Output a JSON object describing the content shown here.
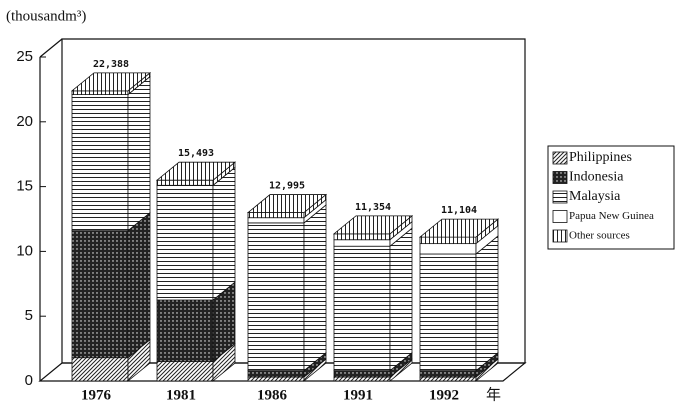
{
  "chart_data": {
    "type": "stacked-bar-3d",
    "y_label": "(thousandm³)",
    "x_unit": "年",
    "categories": [
      "1976",
      "1981",
      "1986",
      "1991",
      "1992"
    ],
    "series": [
      {
        "name": "Philippines",
        "color": "#222",
        "pattern": "diagonal",
        "values": [
          1.8,
          1.5,
          0.3,
          0.3,
          0.3
        ]
      },
      {
        "name": "Indonesia",
        "color": "#222",
        "pattern": "crosshatch",
        "values": [
          9.8,
          4.75,
          0.5,
          0.5,
          0.5
        ]
      },
      {
        "name": "Malaysia",
        "color": "#222",
        "pattern": "horizontal",
        "values": [
          10.5,
          8.85,
          11.4,
          9.6,
          9.0
        ]
      },
      {
        "name": "Papua New Guinea",
        "color": "#222",
        "pattern": "none",
        "values": [
          0,
          0,
          0.4,
          0.5,
          0.8
        ]
      },
      {
        "name": "Other sources",
        "color": "#222",
        "pattern": "vertical",
        "values": [
          0.288,
          0.393,
          0.395,
          0.454,
          0.504
        ]
      }
    ],
    "totals": {
      "values": [
        22.388,
        15.493,
        12.995,
        11.354,
        11.104
      ],
      "value_labels": [
        "22,388",
        "15,493",
        "12,995",
        "11,354",
        "11,104"
      ]
    },
    "ylim": [
      0,
      25
    ],
    "yticks": [
      0,
      5,
      10,
      15,
      20,
      25
    ]
  }
}
